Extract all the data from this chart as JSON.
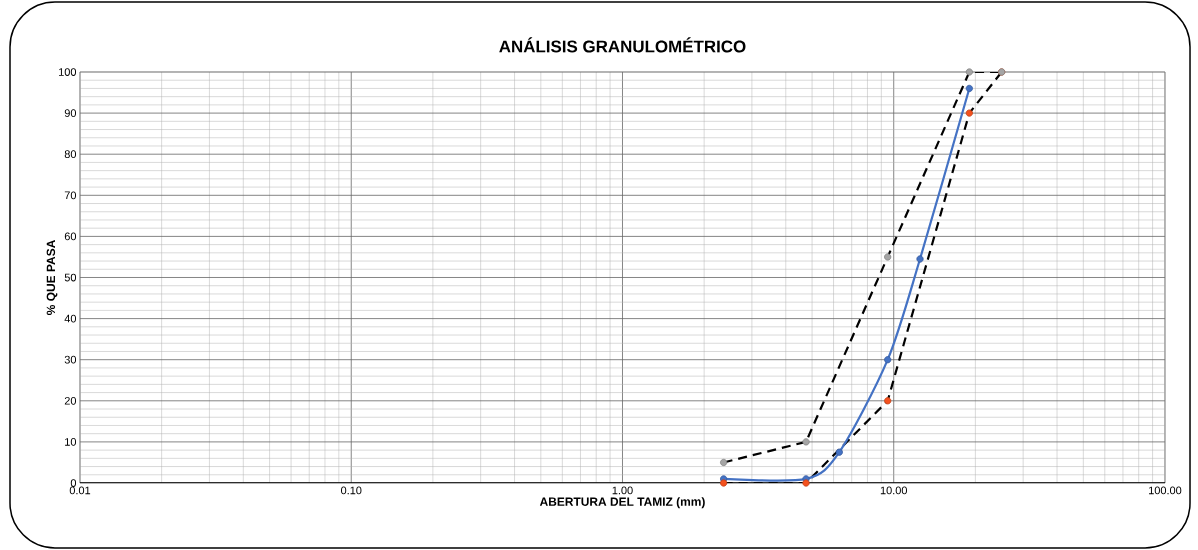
{
  "chart_data": {
    "type": "line",
    "title": "ANÁLISIS GRANULOMÉTRICO",
    "xlabel": "ABERTURA DEL TAMIZ (mm)",
    "ylabel": "% QUE PASA",
    "log": "x",
    "xlim": [
      0.01,
      100
    ],
    "xticks": [
      {
        "value": 0.01,
        "label": "0.01"
      },
      {
        "value": 0.1,
        "label": "0.10"
      },
      {
        "value": 1,
        "label": "1.00"
      },
      {
        "value": 10,
        "label": "10.00"
      },
      {
        "value": 100,
        "label": "100.00"
      }
    ],
    "ylim": [
      0,
      100
    ],
    "yticks": [
      0,
      10,
      20,
      30,
      40,
      50,
      60,
      70,
      80,
      90,
      100
    ],
    "grid": true,
    "marker": "circle",
    "series": [
      {
        "x": [
          2.36,
          4.75,
          9.5,
          19,
          25
        ],
        "values": [
          5,
          10,
          55,
          100,
          100
        ],
        "color": "#000000",
        "colors": [
          "#a5a5a5",
          "#a5a5a5",
          "#a5a5a5",
          "#a5a5a5",
          "#a5a5a5"
        ],
        "line_style": "dashed"
      },
      {
        "x": [
          2.36,
          4.75,
          9.5,
          19,
          25
        ],
        "values": [
          0,
          0,
          20,
          90,
          100
        ],
        "color": "#000000",
        "colors": [
          "#f4511e",
          "#f4511e",
          "#f4511e",
          "#f4511e",
          "#f4511e"
        ],
        "line_style": "dashed"
      },
      {
        "x": [
          2.36,
          4.75,
          6.3,
          9.5,
          12.5,
          19
        ],
        "values": [
          1,
          1,
          7.5,
          30,
          54.5,
          96
        ],
        "color": "#4472c4",
        "line_style": "solid"
      }
    ]
  }
}
